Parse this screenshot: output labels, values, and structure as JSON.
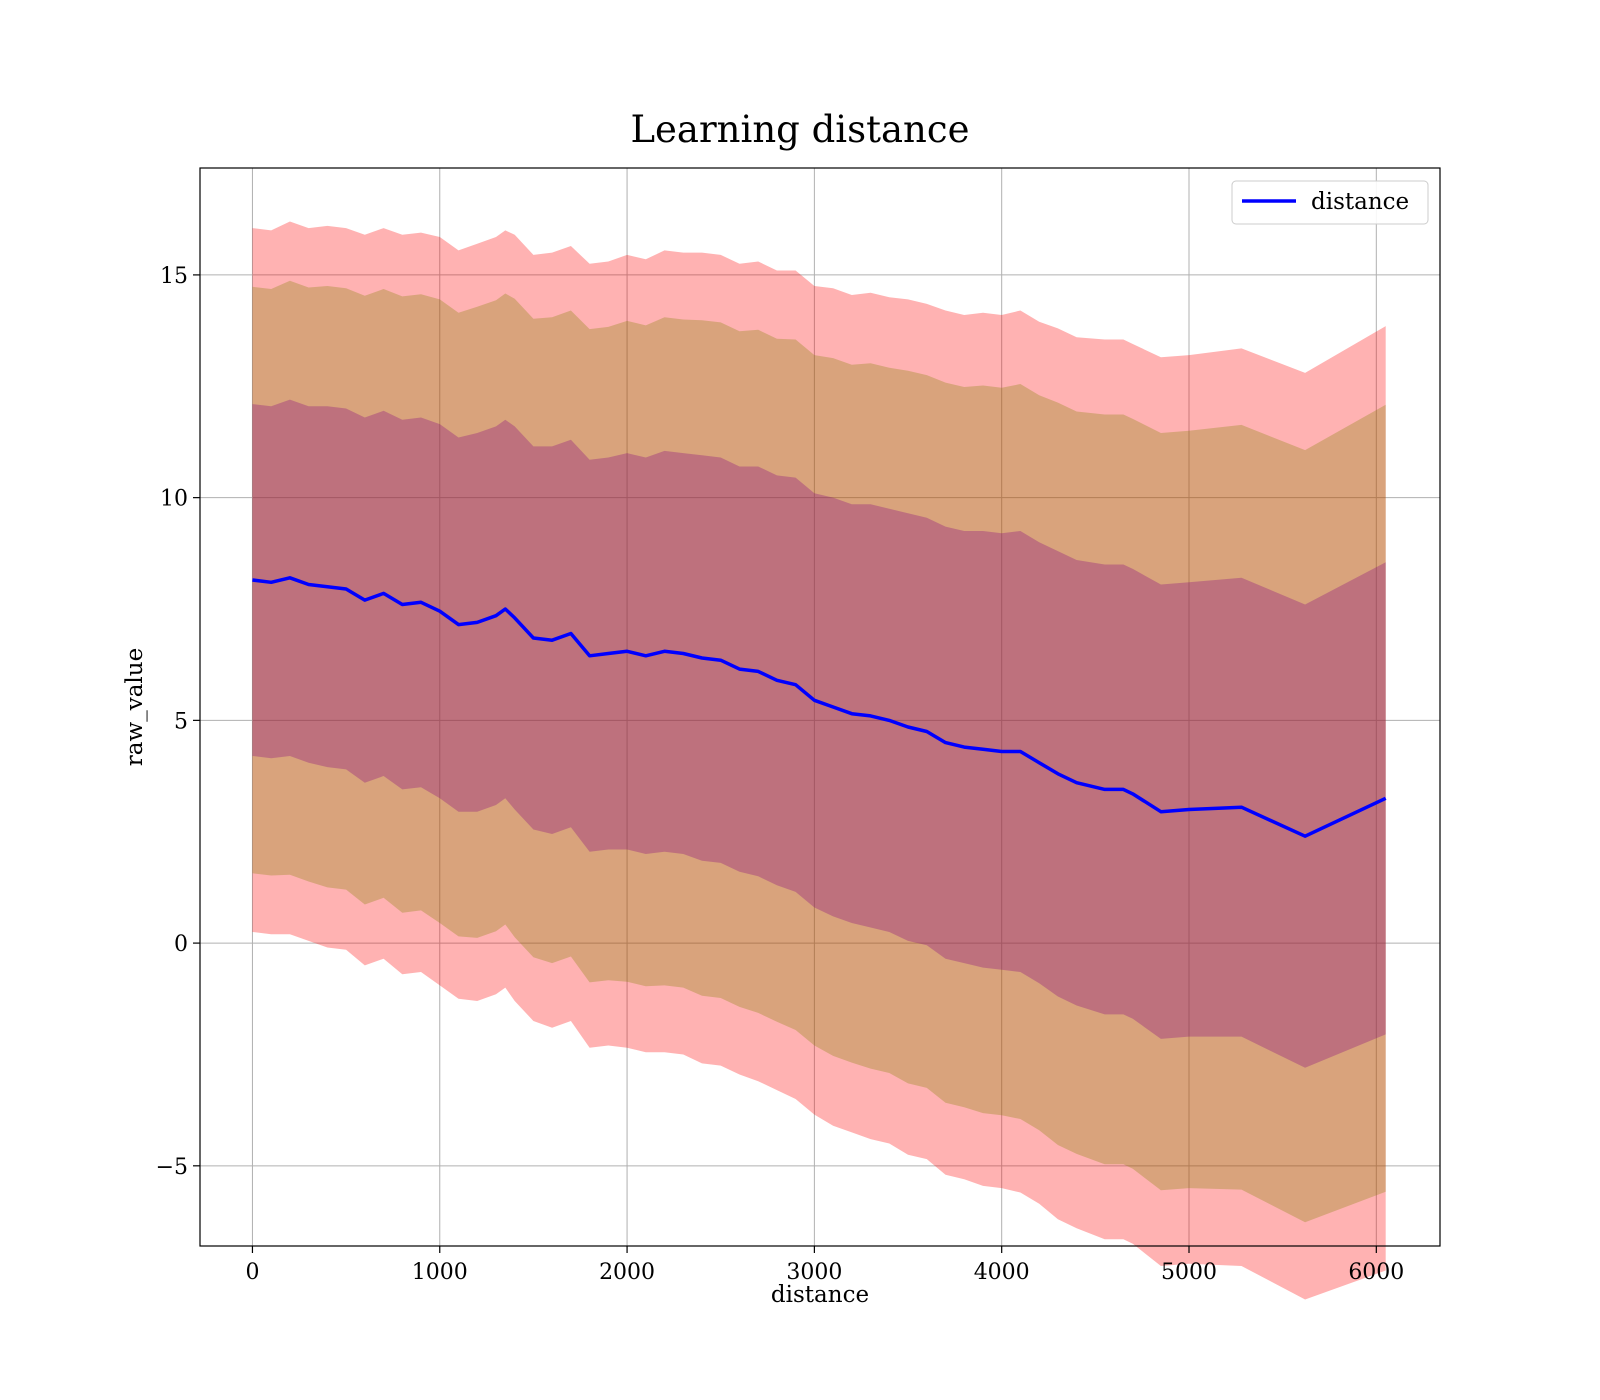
{
  "chart_data": {
    "type": "line",
    "title": "Learning distance",
    "xlabel": "distance",
    "ylabel": "raw_value",
    "xlim": [
      -280,
      6340
    ],
    "ylim": [
      -6.8,
      17.4
    ],
    "xticks": [
      0,
      1000,
      2000,
      3000,
      4000,
      5000,
      6000
    ],
    "yticks": [
      -5,
      0,
      5,
      10,
      15
    ],
    "xtick_labels": [
      "0",
      "1000",
      "2000",
      "3000",
      "4000",
      "5000",
      "6000"
    ],
    "ytick_labels": [
      "−5",
      "0",
      "5",
      "10",
      "15"
    ],
    "grid": true,
    "legend": {
      "position": "top-right",
      "entries": [
        "distance"
      ]
    },
    "colors": {
      "line": "#0000ff",
      "outer_band": "#ff0000",
      "middle_band": "#808000",
      "inner_band": "#800080"
    },
    "x": [
      0,
      100,
      200,
      300,
      400,
      500,
      600,
      700,
      800,
      900,
      1000,
      1100,
      1200,
      1300,
      1350,
      1400,
      1500,
      1600,
      1700,
      1800,
      1900,
      2000,
      2100,
      2200,
      2300,
      2400,
      2500,
      2600,
      2700,
      2800,
      2900,
      3000,
      3100,
      3200,
      3300,
      3400,
      3500,
      3600,
      3700,
      3800,
      3900,
      4000,
      4100,
      4200,
      4300,
      4400,
      4550,
      4650,
      4700,
      4850,
      5000,
      5280,
      5620,
      6050
    ],
    "series": [
      {
        "name": "distance",
        "values": [
          8.15,
          8.1,
          8.2,
          8.05,
          8.0,
          7.95,
          7.7,
          7.85,
          7.6,
          7.65,
          7.45,
          7.15,
          7.2,
          7.35,
          7.5,
          7.3,
          6.85,
          6.8,
          6.95,
          6.45,
          6.5,
          6.55,
          6.45,
          6.55,
          6.5,
          6.4,
          6.35,
          6.15,
          6.1,
          5.9,
          5.8,
          5.45,
          5.3,
          5.15,
          5.1,
          5.0,
          4.85,
          4.75,
          4.5,
          4.4,
          4.35,
          4.3,
          4.3,
          4.05,
          3.8,
          3.6,
          3.45,
          3.45,
          3.35,
          2.95,
          3.0,
          3.05,
          2.4,
          3.25
        ]
      }
    ],
    "bands": [
      {
        "level": "outer",
        "std_multiple": 3
      },
      {
        "level": "middle",
        "std_multiple": 2.5
      },
      {
        "level": "inner",
        "std_multiple": 1.5
      }
    ],
    "band_half_widths": [
      7.9,
      7.9,
      8.0,
      8.0,
      8.1,
      8.1,
      8.2,
      8.2,
      8.3,
      8.3,
      8.4,
      8.4,
      8.5,
      8.5,
      8.5,
      8.6,
      8.6,
      8.7,
      8.7,
      8.8,
      8.8,
      8.9,
      8.9,
      9.0,
      9.0,
      9.1,
      9.1,
      9.1,
      9.2,
      9.2,
      9.3,
      9.3,
      9.4,
      9.4,
      9.5,
      9.5,
      9.6,
      9.6,
      9.7,
      9.7,
      9.8,
      9.8,
      9.9,
      9.9,
      10.0,
      10.0,
      10.1,
      10.1,
      10.1,
      10.2,
      10.2,
      10.3,
      10.4,
      10.6
    ]
  }
}
